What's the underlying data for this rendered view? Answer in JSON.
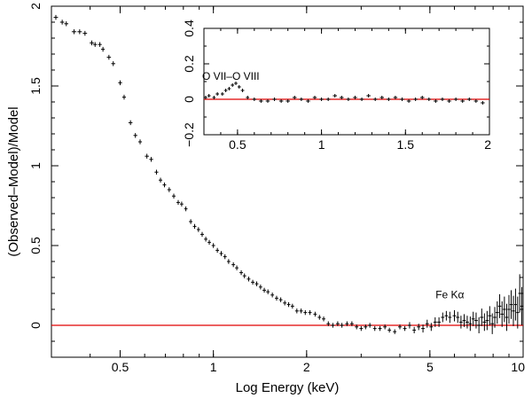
{
  "chart_data": [
    {
      "type": "scatter",
      "title": "",
      "xlabel": "Log Energy (keV)",
      "ylabel": "(Observed–Model)/Model",
      "xscale": "log",
      "xlim": [
        0.3,
        10
      ],
      "ylim": [
        -0.2,
        2.0
      ],
      "xticks": [
        {
          "v": 0.5,
          "label": "0.5"
        },
        {
          "v": 1,
          "label": "1"
        },
        {
          "v": 2,
          "label": "2"
        },
        {
          "v": 5,
          "label": "5"
        },
        {
          "v": 10,
          "label": "10"
        }
      ],
      "yticks": [
        {
          "v": 0,
          "label": "0"
        },
        {
          "v": 0.5,
          "label": "0.5"
        },
        {
          "v": 1,
          "label": "1"
        },
        {
          "v": 1.5,
          "label": "1.5"
        },
        {
          "v": 2,
          "label": "2"
        }
      ],
      "reference_line": {
        "y": 0,
        "color": "#e00000"
      },
      "annotations": [
        {
          "text": "Fe Kα",
          "x": 5.8,
          "y": 0.17
        }
      ],
      "points": [
        [
          0.31,
          1.93,
          0.005,
          0.015
        ],
        [
          0.325,
          1.9,
          0.005,
          0.015
        ],
        [
          0.335,
          1.89,
          0.005,
          0.015
        ],
        [
          0.355,
          1.84,
          0.006,
          0.015
        ],
        [
          0.37,
          1.84,
          0.006,
          0.015
        ],
        [
          0.385,
          1.83,
          0.006,
          0.015
        ],
        [
          0.405,
          1.77,
          0.006,
          0.015
        ],
        [
          0.415,
          1.76,
          0.006,
          0.015
        ],
        [
          0.43,
          1.76,
          0.006,
          0.015
        ],
        [
          0.44,
          1.73,
          0.006,
          0.015
        ],
        [
          0.46,
          1.68,
          0.007,
          0.015
        ],
        [
          0.475,
          1.64,
          0.007,
          0.015
        ],
        [
          0.5,
          1.52,
          0.007,
          0.015
        ],
        [
          0.515,
          1.43,
          0.007,
          0.015
        ],
        [
          0.54,
          1.27,
          0.008,
          0.015
        ],
        [
          0.56,
          1.19,
          0.008,
          0.015
        ],
        [
          0.58,
          1.15,
          0.008,
          0.015
        ],
        [
          0.61,
          1.06,
          0.009,
          0.015
        ],
        [
          0.63,
          1.04,
          0.009,
          0.015
        ],
        [
          0.655,
          0.96,
          0.009,
          0.015
        ],
        [
          0.675,
          0.91,
          0.009,
          0.015
        ],
        [
          0.695,
          0.88,
          0.009,
          0.015
        ],
        [
          0.72,
          0.85,
          0.01,
          0.015
        ],
        [
          0.745,
          0.81,
          0.01,
          0.015
        ],
        [
          0.77,
          0.77,
          0.01,
          0.015
        ],
        [
          0.79,
          0.76,
          0.01,
          0.015
        ],
        [
          0.815,
          0.73,
          0.01,
          0.015
        ],
        [
          0.845,
          0.65,
          0.011,
          0.015
        ],
        [
          0.87,
          0.62,
          0.011,
          0.015
        ],
        [
          0.895,
          0.6,
          0.011,
          0.015
        ],
        [
          0.92,
          0.57,
          0.012,
          0.015
        ],
        [
          0.945,
          0.54,
          0.012,
          0.015
        ],
        [
          0.97,
          0.52,
          0.012,
          0.015
        ],
        [
          1.0,
          0.5,
          0.013,
          0.015
        ],
        [
          1.03,
          0.47,
          0.013,
          0.015
        ],
        [
          1.06,
          0.45,
          0.014,
          0.015
        ],
        [
          1.09,
          0.43,
          0.014,
          0.015
        ],
        [
          1.12,
          0.4,
          0.014,
          0.015
        ],
        [
          1.16,
          0.38,
          0.015,
          0.015
        ],
        [
          1.19,
          0.36,
          0.015,
          0.015
        ],
        [
          1.23,
          0.33,
          0.016,
          0.015
        ],
        [
          1.26,
          0.31,
          0.016,
          0.015
        ],
        [
          1.3,
          0.29,
          0.017,
          0.015
        ],
        [
          1.34,
          0.27,
          0.017,
          0.015
        ],
        [
          1.38,
          0.26,
          0.018,
          0.015
        ],
        [
          1.42,
          0.24,
          0.018,
          0.015
        ],
        [
          1.46,
          0.22,
          0.019,
          0.015
        ],
        [
          1.5,
          0.21,
          0.019,
          0.015
        ],
        [
          1.55,
          0.19,
          0.02,
          0.015
        ],
        [
          1.6,
          0.17,
          0.02,
          0.015
        ],
        [
          1.65,
          0.16,
          0.021,
          0.015
        ],
        [
          1.7,
          0.14,
          0.022,
          0.015
        ],
        [
          1.75,
          0.13,
          0.022,
          0.015
        ],
        [
          1.8,
          0.12,
          0.023,
          0.015
        ],
        [
          1.86,
          0.09,
          0.024,
          0.015
        ],
        [
          1.92,
          0.09,
          0.025,
          0.015
        ],
        [
          1.98,
          0.08,
          0.025,
          0.015
        ],
        [
          2.05,
          0.08,
          0.026,
          0.015
        ],
        [
          2.13,
          0.07,
          0.027,
          0.015
        ],
        [
          2.2,
          0.05,
          0.028,
          0.015
        ],
        [
          2.27,
          0.04,
          0.029,
          0.015
        ],
        [
          2.35,
          0.01,
          0.03,
          0.015
        ],
        [
          2.43,
          0.0,
          0.031,
          0.015
        ],
        [
          2.52,
          0.01,
          0.032,
          0.015
        ],
        [
          2.6,
          0.0,
          0.033,
          0.015
        ],
        [
          2.7,
          0.01,
          0.034,
          0.015
        ],
        [
          2.8,
          0.01,
          0.036,
          0.015
        ],
        [
          2.9,
          -0.01,
          0.037,
          0.015
        ],
        [
          3.0,
          -0.02,
          0.038,
          0.015
        ],
        [
          3.1,
          -0.01,
          0.04,
          0.015
        ],
        [
          3.2,
          0.0,
          0.041,
          0.015
        ],
        [
          3.32,
          -0.02,
          0.042,
          0.015
        ],
        [
          3.45,
          -0.02,
          0.044,
          0.015
        ],
        [
          3.58,
          -0.01,
          0.046,
          0.015
        ],
        [
          3.7,
          -0.03,
          0.047,
          0.015
        ],
        [
          3.85,
          -0.04,
          0.049,
          0.015
        ],
        [
          4.0,
          -0.01,
          0.051,
          0.015
        ],
        [
          4.15,
          -0.02,
          0.053,
          0.015
        ],
        [
          4.3,
          0.0,
          0.055,
          0.02
        ],
        [
          4.45,
          -0.03,
          0.057,
          0.02
        ],
        [
          4.6,
          -0.01,
          0.059,
          0.02
        ],
        [
          4.75,
          -0.02,
          0.06,
          0.025
        ],
        [
          4.9,
          0.01,
          0.062,
          0.025
        ],
        [
          5.05,
          -0.01,
          0.064,
          0.025
        ],
        [
          5.2,
          0.02,
          0.066,
          0.03
        ],
        [
          5.35,
          0.02,
          0.068,
          0.03
        ],
        [
          5.5,
          0.05,
          0.07,
          0.03
        ],
        [
          5.65,
          0.06,
          0.072,
          0.03
        ],
        [
          5.8,
          0.05,
          0.074,
          0.035
        ],
        [
          6.0,
          0.06,
          0.076,
          0.035
        ],
        [
          6.15,
          0.05,
          0.078,
          0.035
        ],
        [
          6.3,
          0.02,
          0.08,
          0.04
        ],
        [
          6.45,
          0.03,
          0.082,
          0.04
        ],
        [
          6.6,
          0.02,
          0.084,
          0.04
        ],
        [
          6.75,
          0.01,
          0.086,
          0.045
        ],
        [
          6.9,
          0.04,
          0.088,
          0.045
        ],
        [
          7.05,
          0.03,
          0.09,
          0.05
        ],
        [
          7.2,
          0.0,
          0.092,
          0.05
        ],
        [
          7.35,
          0.05,
          0.094,
          0.055
        ],
        [
          7.5,
          0.02,
          0.096,
          0.055
        ],
        [
          7.65,
          0.03,
          0.098,
          0.06
        ],
        [
          7.8,
          0.06,
          0.1,
          0.06
        ],
        [
          7.95,
          0.01,
          0.1,
          0.065
        ],
        [
          8.1,
          0.05,
          0.1,
          0.065
        ],
        [
          8.25,
          0.08,
          0.1,
          0.07
        ],
        [
          8.4,
          0.12,
          0.1,
          0.075
        ],
        [
          8.55,
          0.07,
          0.1,
          0.08
        ],
        [
          8.7,
          0.1,
          0.1,
          0.08
        ],
        [
          8.85,
          0.05,
          0.1,
          0.085
        ],
        [
          9.0,
          0.1,
          0.1,
          0.09
        ],
        [
          9.15,
          0.13,
          0.1,
          0.09
        ],
        [
          9.3,
          0.09,
          0.1,
          0.095
        ],
        [
          9.45,
          0.13,
          0.1,
          0.1
        ],
        [
          9.6,
          0.08,
          0.1,
          0.1
        ],
        [
          9.75,
          0.2,
          0.1,
          0.12
        ],
        [
          9.9,
          0.12,
          0.1,
          0.12
        ]
      ]
    },
    {
      "type": "scatter",
      "title": "",
      "xlabel": "",
      "ylabel": "",
      "xlim": [
        0.3,
        2.0
      ],
      "ylim": [
        -0.2,
        0.4
      ],
      "xticks": [
        {
          "v": 0.5,
          "label": "0.5"
        },
        {
          "v": 1,
          "label": "1"
        },
        {
          "v": 1.5,
          "label": "1.5"
        },
        {
          "v": 2,
          "label": "2"
        }
      ],
      "yticks": [
        {
          "v": -0.2,
          "label": "−0.2"
        },
        {
          "v": 0,
          "label": "0"
        },
        {
          "v": 0.2,
          "label": "0.2"
        },
        {
          "v": 0.4,
          "label": "0.4"
        }
      ],
      "reference_line": {
        "y": 0,
        "color": "#e00000"
      },
      "annotations": [
        {
          "text": "O VII–O VIII",
          "x": 0.46,
          "y": 0.11
        }
      ],
      "points": [
        [
          0.31,
          0.01,
          0.01,
          0.01
        ],
        [
          0.33,
          0.02,
          0.01,
          0.01
        ],
        [
          0.36,
          0.01,
          0.01,
          0.01
        ],
        [
          0.38,
          0.03,
          0.01,
          0.01
        ],
        [
          0.41,
          0.03,
          0.01,
          0.01
        ],
        [
          0.43,
          0.05,
          0.01,
          0.01
        ],
        [
          0.45,
          0.06,
          0.01,
          0.01
        ],
        [
          0.47,
          0.08,
          0.01,
          0.01
        ],
        [
          0.49,
          0.09,
          0.01,
          0.01
        ],
        [
          0.51,
          0.07,
          0.01,
          0.01
        ],
        [
          0.53,
          0.05,
          0.01,
          0.01
        ],
        [
          0.56,
          0.01,
          0.01,
          0.01
        ],
        [
          0.6,
          0.0,
          0.012,
          0.01
        ],
        [
          0.64,
          -0.01,
          0.012,
          0.01
        ],
        [
          0.68,
          -0.01,
          0.012,
          0.01
        ],
        [
          0.72,
          0.0,
          0.012,
          0.01
        ],
        [
          0.76,
          -0.01,
          0.012,
          0.01
        ],
        [
          0.8,
          -0.01,
          0.012,
          0.01
        ],
        [
          0.84,
          0.01,
          0.012,
          0.01
        ],
        [
          0.88,
          0.0,
          0.012,
          0.01
        ],
        [
          0.92,
          -0.01,
          0.012,
          0.01
        ],
        [
          0.96,
          0.01,
          0.012,
          0.01
        ],
        [
          1.0,
          0.0,
          0.012,
          0.01
        ],
        [
          1.04,
          0.0,
          0.012,
          0.01
        ],
        [
          1.08,
          0.02,
          0.012,
          0.01
        ],
        [
          1.12,
          0.01,
          0.012,
          0.01
        ],
        [
          1.16,
          0.0,
          0.012,
          0.01
        ],
        [
          1.2,
          0.01,
          0.012,
          0.01
        ],
        [
          1.24,
          0.0,
          0.012,
          0.01
        ],
        [
          1.28,
          0.02,
          0.012,
          0.01
        ],
        [
          1.32,
          0.0,
          0.012,
          0.01
        ],
        [
          1.36,
          0.01,
          0.012,
          0.01
        ],
        [
          1.4,
          0.0,
          0.012,
          0.01
        ],
        [
          1.44,
          0.01,
          0.012,
          0.01
        ],
        [
          1.48,
          0.0,
          0.012,
          0.01
        ],
        [
          1.52,
          -0.01,
          0.012,
          0.01
        ],
        [
          1.56,
          0.0,
          0.012,
          0.01
        ],
        [
          1.6,
          0.01,
          0.012,
          0.01
        ],
        [
          1.64,
          0.0,
          0.012,
          0.01
        ],
        [
          1.68,
          -0.01,
          0.012,
          0.01
        ],
        [
          1.72,
          0.0,
          0.012,
          0.01
        ],
        [
          1.76,
          -0.01,
          0.012,
          0.01
        ],
        [
          1.8,
          0.0,
          0.012,
          0.01
        ],
        [
          1.84,
          -0.01,
          0.012,
          0.01
        ],
        [
          1.88,
          0.0,
          0.012,
          0.01
        ],
        [
          1.92,
          -0.01,
          0.012,
          0.01
        ],
        [
          1.96,
          -0.02,
          0.012,
          0.01
        ]
      ]
    }
  ]
}
